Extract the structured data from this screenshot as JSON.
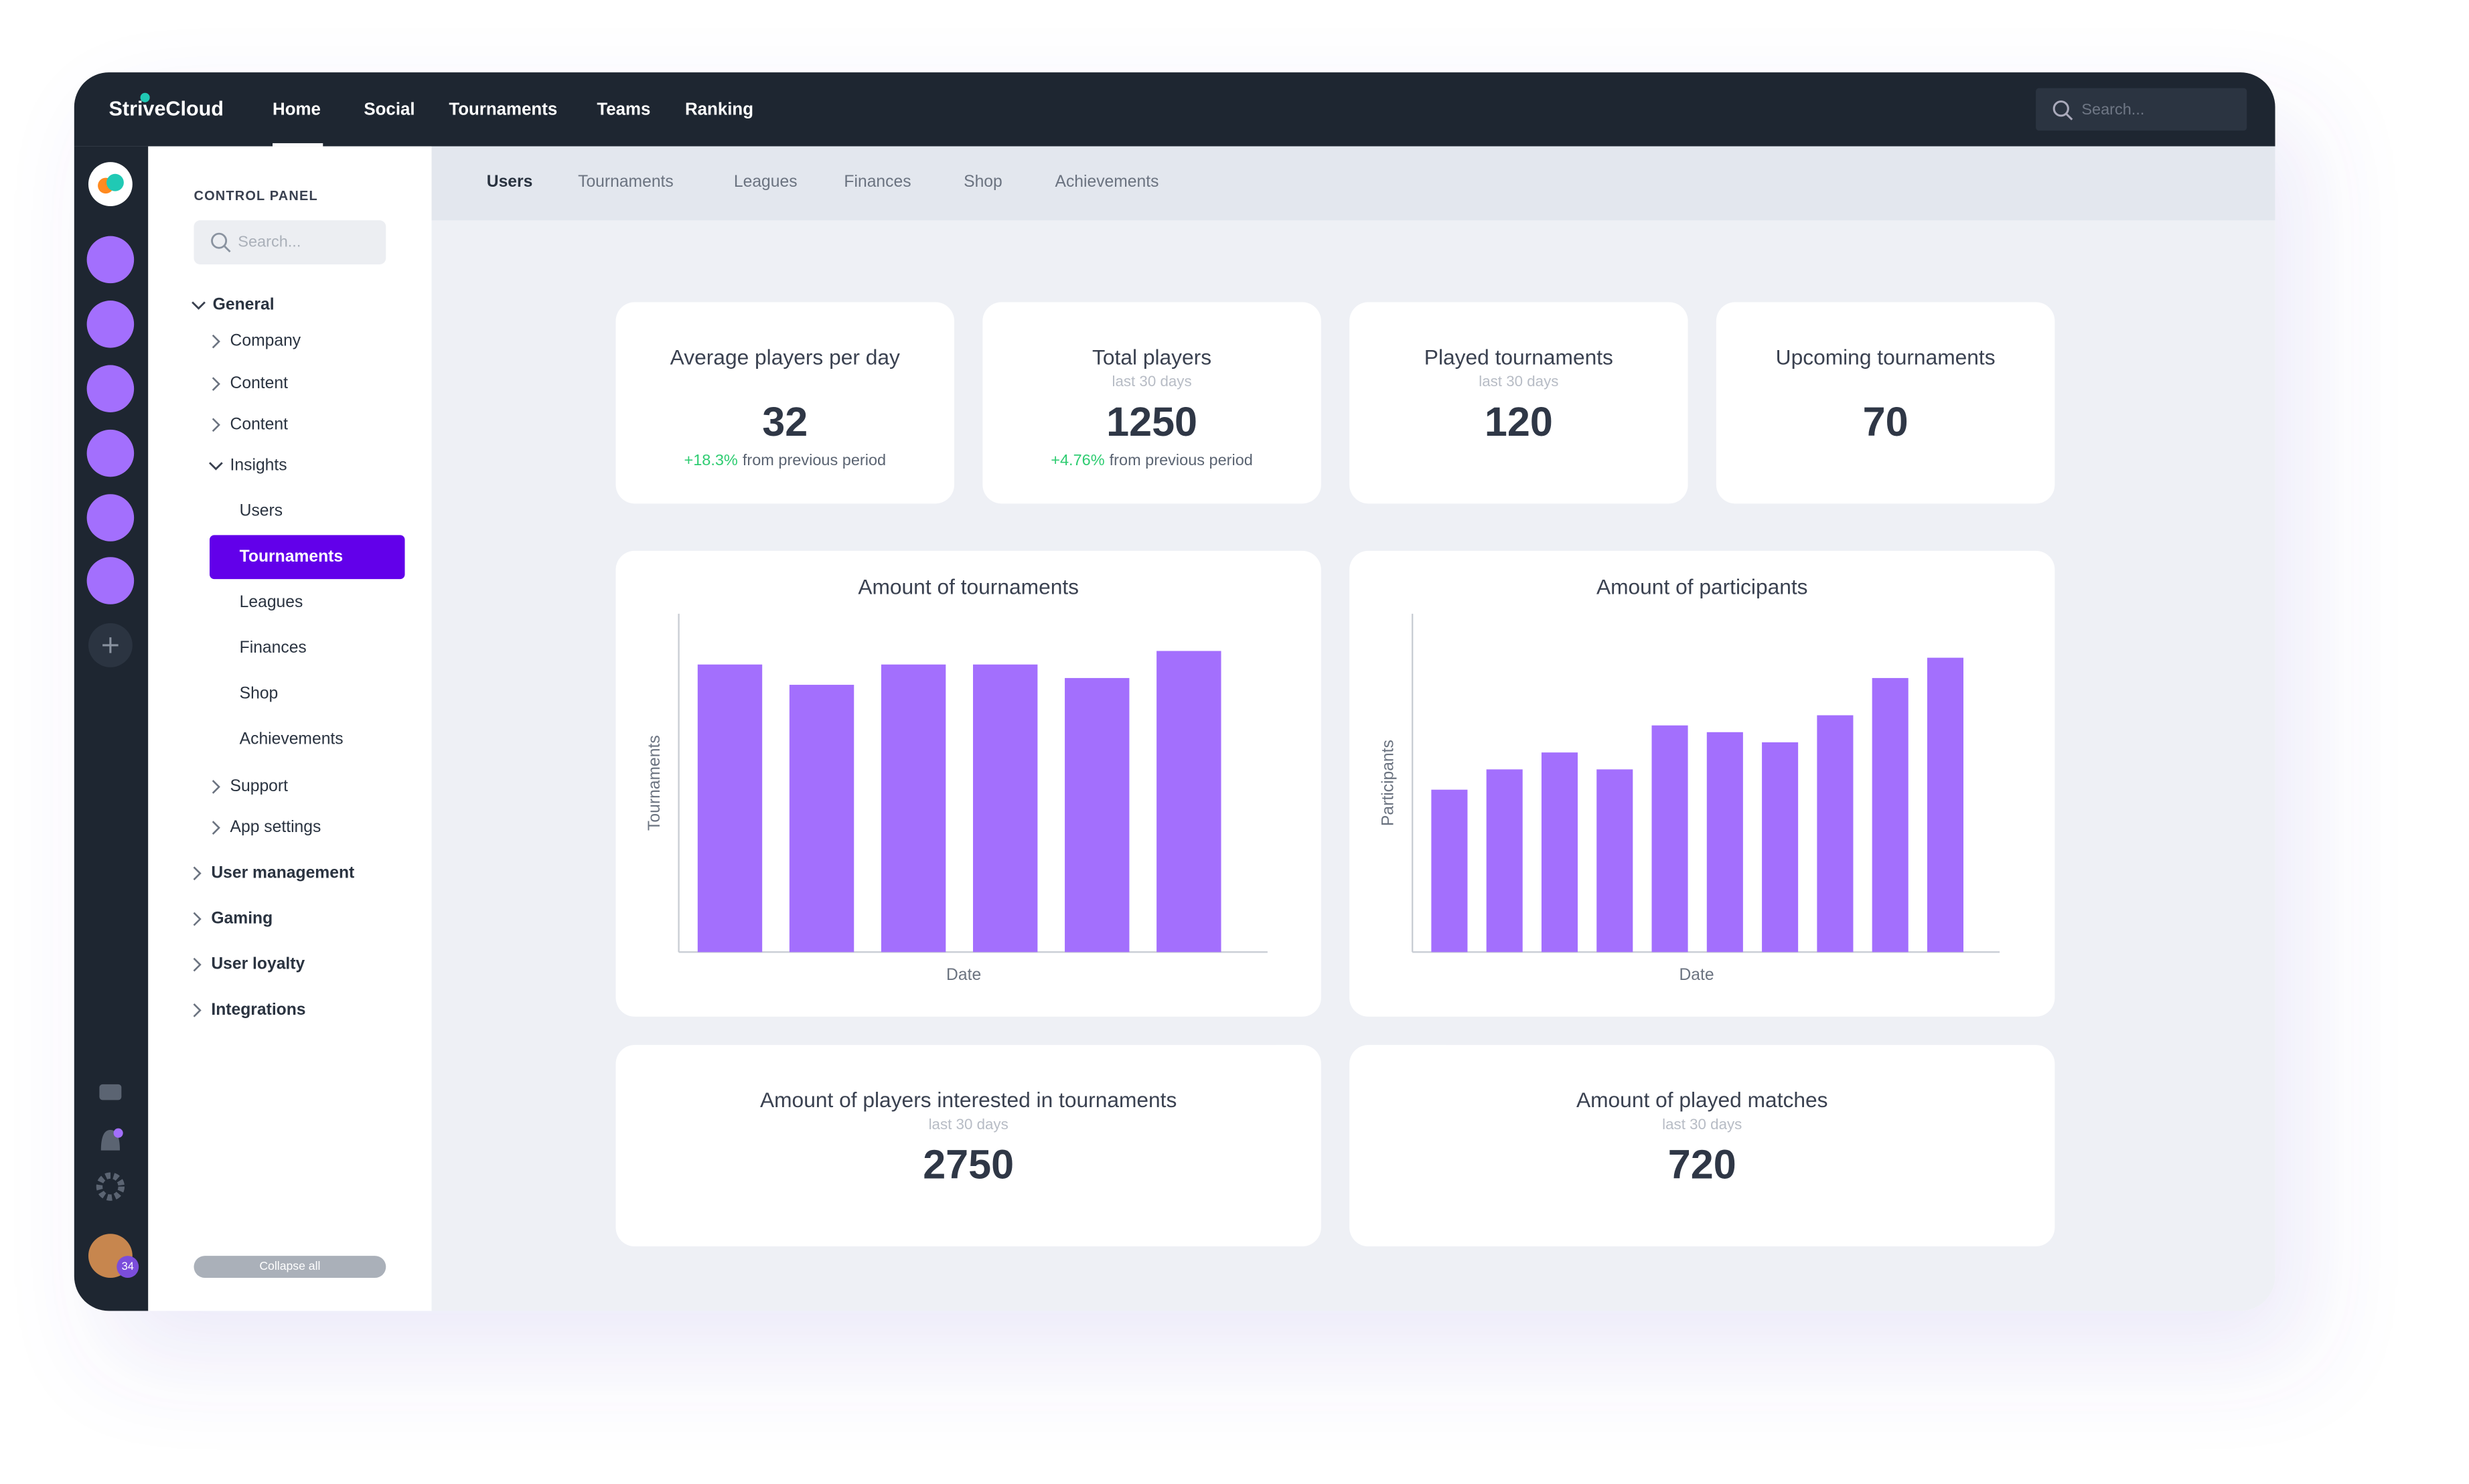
{
  "nav": {
    "logo": "StriveCloud",
    "items": [
      "Home",
      "Social",
      "Tournaments",
      "Teams",
      "Ranking"
    ],
    "search": "Search..."
  },
  "sidebar": {
    "heading": "CONTROL PANEL",
    "search": "Search...",
    "badge": "34",
    "collapse": "Collapse all",
    "items": [
      "General",
      "Company",
      "Content",
      "Content",
      "Insights",
      "Users",
      "Tournaments",
      "Leagues",
      "Finances",
      "Shop",
      "Achievements",
      "Support",
      "App settings",
      "User management",
      "Gaming",
      "User loyalty",
      "Integrations"
    ]
  },
  "tabs": [
    "Users",
    "Tournaments",
    "Leagues",
    "Finances",
    "Shop",
    "Achievements"
  ],
  "stats": [
    {
      "title": "Average players per day",
      "value": 32,
      "change": "+18.3%",
      "change_text": "from previous period"
    },
    {
      "title": "Total players",
      "subtitle": "last 30 days",
      "value": 1250,
      "change": "+4.76%",
      "change_text": "from previous period"
    },
    {
      "title": "Played tournaments",
      "subtitle": "last 30 days",
      "value": 120
    },
    {
      "title": "Upcoming tournaments",
      "value": 70
    }
  ],
  "chart_data": [
    {
      "type": "bar",
      "title": "Amount of tournaments",
      "x_label": "Date",
      "y_label": "Tournaments",
      "color": "#a36ffd",
      "categories": [
        null,
        null,
        null,
        null,
        null,
        null
      ],
      "values": [
        85,
        79,
        85,
        85,
        81,
        89
      ],
      "ylim": [
        0,
        100
      ]
    },
    {
      "type": "bar",
      "title": "Amount of participants",
      "x_label": "Date",
      "y_label": "Participants",
      "color": "#a36ffd",
      "categories": [
        null,
        null,
        null,
        null,
        null,
        null,
        null,
        null,
        null,
        null
      ],
      "values": [
        48,
        54,
        59,
        54,
        67,
        65,
        62,
        70,
        81,
        87
      ],
      "ylim": [
        0,
        100
      ]
    }
  ],
  "bottom_stats": [
    {
      "title": "Amount of players interested in tournaments",
      "subtitle": "last 30 days",
      "value": 2750
    },
    {
      "title": "Amount of played matches",
      "subtitle": "last 30 days",
      "value": 720
    }
  ]
}
